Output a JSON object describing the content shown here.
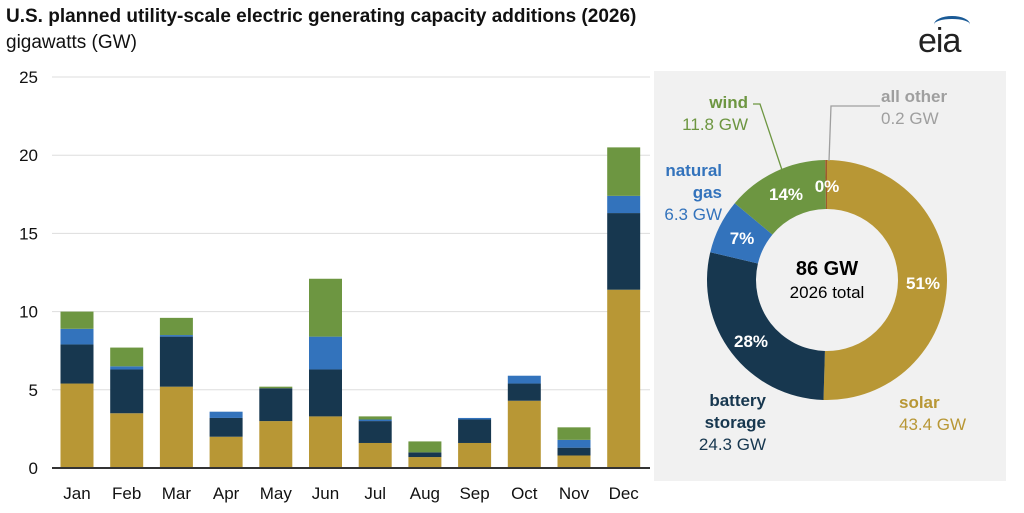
{
  "header": {
    "title": "U.S. planned utility-scale electric generating capacity additions (2026)",
    "subtitle": "gigawatts (GW)",
    "logo": "eia"
  },
  "colors": {
    "solar": "#b89735",
    "battery storage": "#17374f",
    "natural gas": "#3373bc",
    "wind": "#6d9641",
    "all other": "#9f9f9f",
    "panel": "#f1f1f1"
  },
  "chart_data": [
    {
      "type": "bar",
      "stacked": true,
      "ylim": [
        0,
        25
      ],
      "yticks": [
        "0",
        "5",
        "10",
        "15",
        "20",
        "25"
      ],
      "grid": true,
      "categories": [
        "Jan",
        "Feb",
        "Mar",
        "Apr",
        "May",
        "Jun",
        "Jul",
        "Aug",
        "Sep",
        "Oct",
        "Nov",
        "Dec"
      ],
      "series": [
        {
          "key": "solar",
          "values": [
            5.4,
            3.5,
            5.2,
            2.0,
            3.0,
            3.3,
            1.6,
            0.7,
            1.6,
            4.3,
            0.8,
            11.4
          ]
        },
        {
          "key": "battery storage",
          "values": [
            2.5,
            2.8,
            3.2,
            1.2,
            2.1,
            3.0,
            1.4,
            0.3,
            1.5,
            1.1,
            0.5,
            4.9
          ]
        },
        {
          "key": "natural gas",
          "values": [
            1.0,
            0.2,
            0.1,
            0.4,
            0.0,
            2.1,
            0.1,
            0.0,
            0.1,
            0.5,
            0.5,
            1.1
          ]
        },
        {
          "key": "wind",
          "values": [
            1.1,
            1.2,
            1.1,
            0.0,
            0.1,
            3.7,
            0.2,
            0.7,
            0.0,
            0.0,
            0.8,
            3.1
          ]
        }
      ]
    },
    {
      "type": "pie",
      "donut": true,
      "center": {
        "value": "86 GW",
        "label": "2026 total"
      },
      "slices": [
        {
          "key": "solar",
          "name": "solar",
          "value": 43.4,
          "value_label": "43.4 GW",
          "pct": "51%"
        },
        {
          "key": "battery storage",
          "name": [
            "battery",
            "storage"
          ],
          "value": 24.3,
          "value_label": "24.3 GW",
          "pct": "28%"
        },
        {
          "key": "natural gas",
          "name": [
            "natural",
            "gas"
          ],
          "value": 6.3,
          "value_label": "6.3 GW",
          "pct": "7%"
        },
        {
          "key": "wind",
          "name": "wind",
          "value": 11.8,
          "value_label": "11.8 GW",
          "pct": "14%"
        },
        {
          "key": "all other",
          "name": "all other",
          "value": 0.2,
          "value_label": "0.2 GW",
          "pct": "0%"
        }
      ]
    }
  ]
}
